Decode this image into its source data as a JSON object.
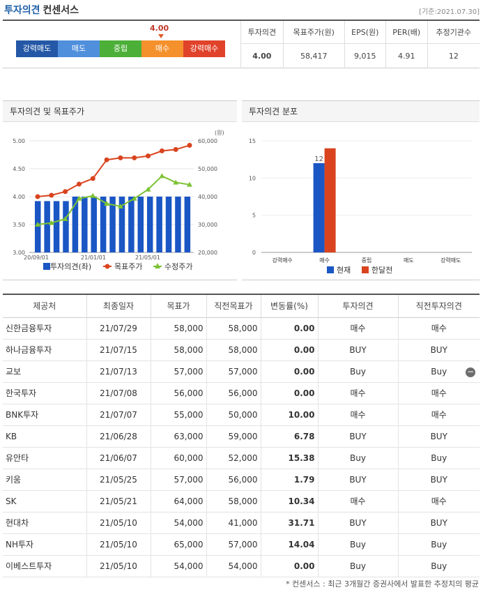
{
  "header": {
    "title_blue": "투자의견",
    "title_black": "컨센서스",
    "date": "[기준:2021.07.30]"
  },
  "scale": {
    "labels": [
      "강력매도",
      "매도",
      "중립",
      "매수",
      "강력매수"
    ],
    "colors": [
      "#2458a6",
      "#4f8fdc",
      "#4caf38",
      "#f5912c",
      "#e0432a"
    ],
    "marker_value": "4.00",
    "marker_level": 4.0
  },
  "summary": {
    "headers": [
      "투자의견",
      "목표주가(원)",
      "EPS(원)",
      "PER(배)",
      "추정기관수"
    ],
    "values": [
      "4.00",
      "58,417",
      "9,015",
      "4.91",
      "12"
    ]
  },
  "panel1": {
    "title": "투자의견 및 목표주가"
  },
  "panel2": {
    "title": "투자의견 분포"
  },
  "chart_data": [
    {
      "type": "bar",
      "y_left_ticks": [
        "5.00",
        "4.50",
        "4.00",
        "3.50",
        "3.00"
      ],
      "y_right_ticks": [
        "60,000",
        "50,000",
        "40,000",
        "30,000",
        "20,000"
      ],
      "y_right_unit": "(원)",
      "x_ticks": [
        "20/09/01",
        "21/01/01",
        "21/05/01"
      ],
      "ylim_left": [
        3.0,
        5.0
      ],
      "ylim_right": [
        20000,
        60000
      ],
      "series": [
        {
          "name": "투자의견(좌)",
          "type": "bar",
          "color": "#1a56c4",
          "values": [
            3.92,
            3.92,
            3.92,
            3.92,
            4.0,
            4.0,
            4.0,
            4.0,
            4.0,
            4.0,
            4.0,
            4.0,
            4.0,
            4.0,
            4.0,
            4.0,
            4.0
          ]
        },
        {
          "name": "목표주가",
          "type": "line",
          "color": "#d9441f",
          "values": [
            40000,
            40500,
            41800,
            44500,
            46500,
            53200,
            53900,
            53900,
            54600,
            56400,
            56900,
            58400
          ]
        },
        {
          "name": "수정주가",
          "type": "line",
          "color": "#7cc234",
          "values": [
            30000,
            30600,
            32000,
            39300,
            40300,
            37500,
            36500,
            39300,
            42600,
            47400,
            45100,
            44300
          ]
        }
      ]
    },
    {
      "type": "bar",
      "categories": [
        "강력매수",
        "매수",
        "중립",
        "매도",
        "강력매도"
      ],
      "ylim": [
        0,
        15
      ],
      "y_ticks": [
        "15",
        "10",
        "5",
        "0"
      ],
      "series": [
        {
          "name": "현재",
          "color": "#1a56c4",
          "values": [
            0,
            12,
            0,
            0,
            0
          ]
        },
        {
          "name": "한달전",
          "color": "#d9441f",
          "values": [
            0,
            14,
            0,
            0,
            0
          ]
        }
      ],
      "bar_label": "12"
    }
  ],
  "table": {
    "headers": [
      "제공처",
      "최종일자",
      "목표가",
      "직전목표가",
      "변동률(%)",
      "투자의견",
      "직전투자의견"
    ],
    "rows": [
      [
        "신한금융투자",
        "21/07/29",
        "58,000",
        "58,000",
        "0.00",
        "매수",
        "매수"
      ],
      [
        "하나금융투자",
        "21/07/15",
        "58,000",
        "58,000",
        "0.00",
        "BUY",
        "BUY"
      ],
      [
        "교보",
        "21/07/13",
        "57,000",
        "57,000",
        "0.00",
        "Buy",
        "Buy"
      ],
      [
        "한국투자",
        "21/07/08",
        "56,000",
        "56,000",
        "0.00",
        "매수",
        "매수"
      ],
      [
        "BNK투자",
        "21/07/07",
        "55,000",
        "50,000",
        "10.00",
        "매수",
        "매수"
      ],
      [
        "KB",
        "21/06/28",
        "63,000",
        "59,000",
        "6.78",
        "BUY",
        "BUY"
      ],
      [
        "유안타",
        "21/06/07",
        "60,000",
        "52,000",
        "15.38",
        "Buy",
        "Buy"
      ],
      [
        "키움",
        "21/05/25",
        "57,000",
        "56,000",
        "1.79",
        "BUY",
        "BUY"
      ],
      [
        "SK",
        "21/05/21",
        "64,000",
        "58,000",
        "10.34",
        "매수",
        "매수"
      ],
      [
        "현대차",
        "21/05/10",
        "54,000",
        "41,000",
        "31.71",
        "BUY",
        "BUY"
      ],
      [
        "NH투자",
        "21/05/10",
        "65,000",
        "57,000",
        "14.04",
        "Buy",
        "Buy"
      ],
      [
        "이베스트투자",
        "21/05/10",
        "54,000",
        "54,000",
        "0.00",
        "Buy",
        "Buy"
      ]
    ],
    "collapse_icon": "minus-circle-icon",
    "collapse_glyph": "−"
  },
  "footnote": "* 컨센서스 : 최근 3개월간 증권사에서 발표한 추정치의 평균"
}
